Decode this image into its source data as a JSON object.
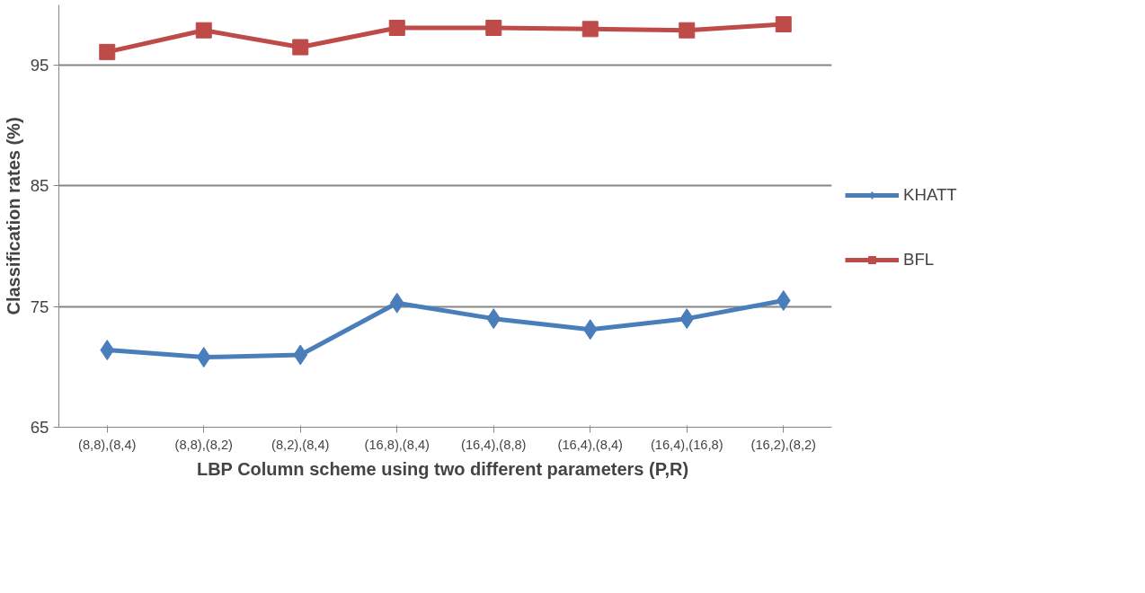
{
  "chart_data": {
    "type": "line",
    "xlabel": "LBP Column scheme using two different  parameters (P,R)",
    "ylabel": "Classification rates (%)",
    "categories": [
      "(8,8),(8,4)",
      "(8,8),(8,2)",
      "(8,2),(8,4)",
      "(16,8),(8,4)",
      "(16,4),(8,8)",
      "(16,4),(8,4)",
      "(16,4),(16,8)",
      "(16,2),(8,2)"
    ],
    "series": [
      {
        "name": "KHATT",
        "color": "#4a7ebb",
        "marker": "diamond",
        "values": [
          71.4,
          70.8,
          71.0,
          75.3,
          74.0,
          73.1,
          74.0,
          75.5
        ]
      },
      {
        "name": "BFL",
        "color": "#be4b48",
        "marker": "square",
        "values": [
          96.1,
          97.9,
          96.5,
          98.1,
          98.1,
          98.0,
          97.9,
          98.4
        ]
      }
    ],
    "ylim": [
      65,
      100
    ],
    "yticks": [
      65,
      75,
      85,
      95
    ],
    "grid": "y",
    "legend": "right",
    "line_style": "solid"
  }
}
